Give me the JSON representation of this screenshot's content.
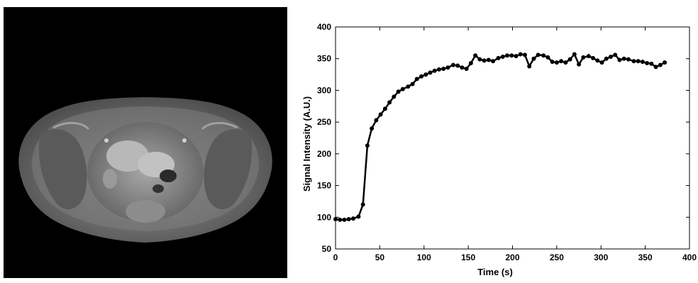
{
  "image_panel": {
    "description_icon": "mri-axial-pelvis-image",
    "background_color": "#000000"
  },
  "chart_data": {
    "type": "line",
    "title": "",
    "xlabel": "Time (s)",
    "ylabel": "Signal Intensity (A.U.)",
    "xlim": [
      0,
      400
    ],
    "ylim": [
      50,
      400
    ],
    "xticks": [
      0,
      50,
      100,
      150,
      200,
      250,
      300,
      350,
      400
    ],
    "yticks": [
      50,
      100,
      150,
      200,
      250,
      300,
      350,
      400
    ],
    "grid": false,
    "line_color": "#000000",
    "series": [
      {
        "x": [
          0,
          5,
          10,
          15,
          20,
          26,
          31,
          36,
          41,
          46,
          51,
          56,
          61,
          66,
          71,
          76,
          82,
          87,
          92,
          97,
          102,
          107,
          112,
          117,
          122,
          127,
          133,
          138,
          143,
          148,
          153,
          158,
          163,
          168,
          173,
          178,
          184,
          189,
          194,
          199,
          204,
          209,
          214,
          219,
          224,
          229,
          235,
          240,
          245,
          250,
          255,
          260,
          265,
          270,
          275,
          280,
          286,
          291,
          296,
          301,
          306,
          311,
          316,
          321,
          326,
          331,
          337,
          342,
          347,
          352,
          357,
          362,
          367,
          372
        ],
        "values": [
          97,
          96,
          96,
          97,
          98,
          101,
          120,
          213,
          240,
          253,
          262,
          271,
          281,
          290,
          298,
          302,
          306,
          310,
          318,
          322,
          325,
          328,
          331,
          333,
          334,
          336,
          340,
          339,
          336,
          334,
          343,
          355,
          349,
          347,
          348,
          346,
          351,
          353,
          355,
          355,
          354,
          357,
          356,
          338,
          350,
          356,
          355,
          352,
          345,
          344,
          346,
          344,
          349,
          357,
          341,
          352,
          354,
          351,
          347,
          344,
          350,
          353,
          356,
          348,
          350,
          349,
          346,
          346,
          345,
          343,
          342,
          337,
          340,
          344
        ]
      }
    ]
  }
}
